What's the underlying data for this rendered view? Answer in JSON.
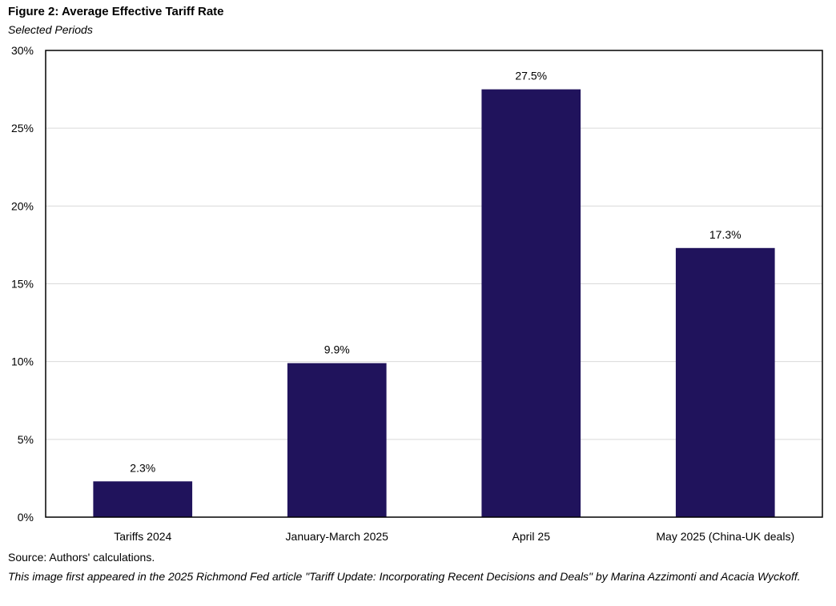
{
  "figure": {
    "title": "Figure 2: Average Effective Tariff Rate",
    "subtitle": "Selected Periods",
    "source": "Source: Authors' calculations.",
    "credit": "This image first appeared in the 2025  Richmond Fed article  \"Tariff Update: Incorporating Recent Decisions and Deals\" by Marina Azzimonti and Acacia Wyckoff."
  },
  "chart_data": {
    "type": "bar",
    "title": "Figure 2: Average Effective Tariff Rate",
    "subtitle": "Selected Periods",
    "xlabel": "",
    "ylabel": "",
    "categories": [
      "Tariffs 2024",
      "January-March 2025",
      "April 25",
      "May 2025 (China-UK deals)"
    ],
    "values": [
      2.3,
      9.9,
      27.5,
      17.3
    ],
    "data_labels": [
      "2.3%",
      "9.9%",
      "27.5%",
      "17.3%"
    ],
    "ylim": [
      0,
      30
    ],
    "yticks": [
      0,
      5,
      10,
      15,
      20,
      25,
      30
    ],
    "ytick_labels": [
      "0%",
      "5%",
      "10%",
      "15%",
      "20%",
      "25%",
      "30%"
    ],
    "grid": true,
    "legend": "none",
    "bar_color": "#20135c",
    "grid_color": "#d9d9d9",
    "frame_color": "#000000"
  }
}
